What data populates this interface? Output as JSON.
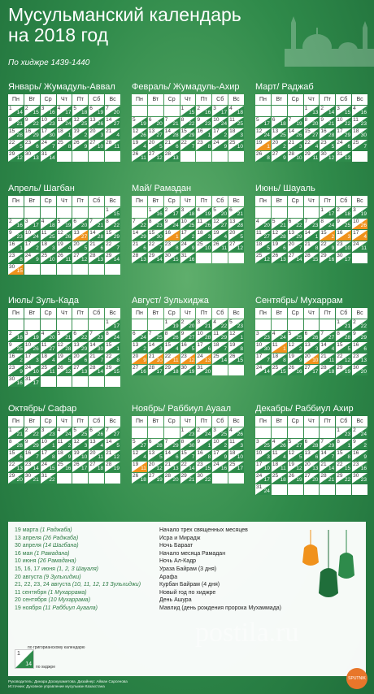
{
  "title_line1": "Мусульманский календарь",
  "title_line2": "на 2018 год",
  "subtitle": "По хиджре 1439-1440",
  "weekdays": [
    "Пн",
    "Вт",
    "Ср",
    "Чт",
    "Пт",
    "Сб",
    "Вс"
  ],
  "colors": {
    "green": "#2e8b4b",
    "orange": "#f0921c",
    "white": "#ffffff"
  },
  "months": [
    {
      "name": "Январь/ Жумадуль-Аввал",
      "start": 0,
      "days": 31,
      "hstart": 14,
      "hlen": 30,
      "highlight": []
    },
    {
      "name": "Февраль/ Жумадуль-Ахир",
      "start": 3,
      "days": 28,
      "hstart": 15,
      "hlen": 29,
      "highlight": []
    },
    {
      "name": "Март/ Раджаб",
      "start": 3,
      "days": 31,
      "hstart": 13,
      "hlen": 30,
      "highlight": [
        19
      ]
    },
    {
      "name": "Апрель/ Шагбан",
      "start": 6,
      "days": 30,
      "hstart": 15,
      "hlen": 29,
      "highlight": [
        13,
        30
      ]
    },
    {
      "name": "Май/ Рамадан",
      "start": 1,
      "days": 31,
      "hstart": 16,
      "hlen": 30,
      "highlight": [
        16
      ]
    },
    {
      "name": "Июнь/ Шауаль",
      "start": 4,
      "days": 30,
      "hstart": 17,
      "hlen": 29,
      "highlight": [
        10,
        15,
        16,
        17
      ]
    },
    {
      "name": "Июль/ Зуль-Када",
      "start": 6,
      "days": 31,
      "hstart": 17,
      "hlen": 30,
      "highlight": []
    },
    {
      "name": "Август/ Зульхиджа",
      "start": 2,
      "days": 31,
      "hstart": 19,
      "hlen": 29,
      "highlight": [
        20,
        21,
        22,
        23,
        24
      ]
    },
    {
      "name": "Сентябрь/ Мухаррам",
      "start": 5,
      "days": 30,
      "hstart": 21,
      "hlen": 30,
      "highlight": [
        11,
        20
      ]
    },
    {
      "name": "Октябрь/ Сафар",
      "start": 0,
      "days": 31,
      "hstart": 21,
      "hlen": 29,
      "highlight": []
    },
    {
      "name": "Ноябрь/ Раббиул Ауаал",
      "start": 3,
      "days": 30,
      "hstart": 23,
      "hlen": 30,
      "highlight": [
        19
      ]
    },
    {
      "name": "Декабрь/ Раббиул Ахир",
      "start": 5,
      "days": 31,
      "hstart": 23,
      "hlen": 29,
      "highlight": []
    }
  ],
  "events": [
    {
      "date": "19 марта",
      "hijri": "(1 Раджаба)",
      "name": "Начало трех священных месяцев"
    },
    {
      "date": "13 апреля",
      "hijri": "(26 Раджаба)",
      "name": "Исра и Мирадж"
    },
    {
      "date": "30 апреля",
      "hijri": "(14 Шагбана)",
      "name": "Ночь Бараат"
    },
    {
      "date": "16 мая",
      "hijri": "(1 Рамадана)",
      "name": "Начало месяца Рамадан"
    },
    {
      "date": "10 июня",
      "hijri": "(26 Рамадана)",
      "name": "Ночь Ал-Кадр"
    },
    {
      "date": "15, 16, 17 июня",
      "hijri": "(1, 2, 3 Шауаля)",
      "name": "Ураза Байрам (3 дня)"
    },
    {
      "date": "20 августа",
      "hijri": "(9 Зульхиджи)",
      "name": "Арафа"
    },
    {
      "date": "21, 22, 23, 24 августа",
      "hijri": "(10, 11, 12, 13 Зульхиджи)",
      "name": "Курбан Байрам (4 дня)"
    },
    {
      "date": "11 сентября",
      "hijri": "(1 Мухаррама)",
      "name": "Новый год по хиджре"
    },
    {
      "date": "20 сентября",
      "hijri": "(10 Мухаррама)",
      "name": "День Ашура"
    },
    {
      "date": "19 ноября",
      "hijri": "(11 Раббиул Ауаала)",
      "name": "Мавлид (день рождения пророка Мухаммада)"
    }
  ],
  "legend": {
    "gregorian_label": "по григорианскому календарю",
    "hijri_label": "по хиджре",
    "g": "1",
    "h": "14"
  },
  "credits_line1": "Руководитель: Динара Досмухаметова. Дизайнер: Айжан Сарсенова",
  "credits_line2": "Источник: Духовное управление мусульман Казахстана",
  "watermark": "postila.ru",
  "logo": "SPUTNIK"
}
